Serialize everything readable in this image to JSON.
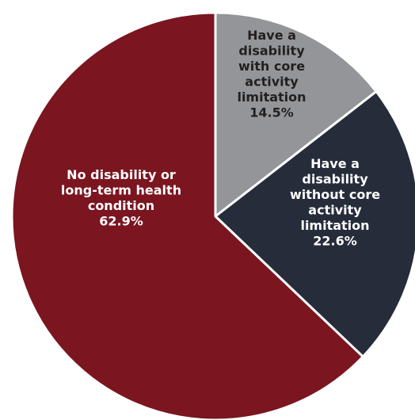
{
  "chart_data": {
    "type": "pie",
    "title": "",
    "start_angle_deg": 0,
    "direction": "clockwise",
    "slices": [
      {
        "name": "Have a disability with core activity limitation",
        "label_lines": [
          "Have a",
          "disability",
          "with core",
          "activity",
          "limitation",
          "14.5%"
        ],
        "value": 14.5,
        "color": "#939598",
        "text_color": "#231f20"
      },
      {
        "name": "Have a disability without core activity limitation",
        "label_lines": [
          "Have a",
          "disability",
          "without core",
          "activity",
          "limitation",
          "22.6%"
        ],
        "value": 22.6,
        "color": "#262c3a",
        "text_color": "#ffffff"
      },
      {
        "name": "No disability or long-term health condition",
        "label_lines": [
          "No disability or",
          "long-term health",
          "condition",
          "62.9%"
        ],
        "value": 62.9,
        "color": "#7b1520",
        "text_color": "#ffffff"
      }
    ]
  }
}
